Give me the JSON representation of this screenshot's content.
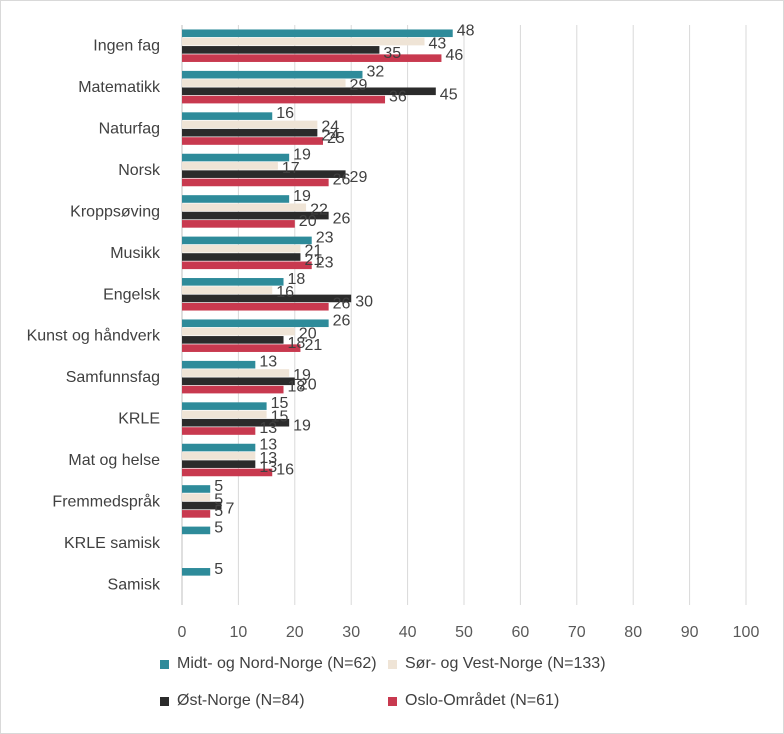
{
  "chart_data": {
    "type": "bar",
    "orientation": "horizontal",
    "categories": [
      "Ingen fag",
      "Matematikk",
      "Naturfag",
      "Norsk",
      "Kroppsøving",
      "Musikk",
      "Engelsk",
      "Kunst og håndverk",
      "Samfunnsfag",
      "KRLE",
      "Mat og helse",
      "Fremmedspråk",
      "KRLE samisk",
      "Samisk"
    ],
    "series": [
      {
        "name": "Midt- og Nord-Norge (N=62)",
        "color": "#2e8b9a",
        "values": [
          48,
          32,
          16,
          19,
          19,
          23,
          18,
          26,
          13,
          15,
          13,
          5,
          5,
          5
        ]
      },
      {
        "name": "Sør- og Vest-Norge (N=133)",
        "color": "#efe4d6",
        "values": [
          43,
          29,
          24,
          17,
          22,
          21,
          16,
          20,
          19,
          15,
          13,
          5,
          null,
          null
        ]
      },
      {
        "name": "Øst-Norge (N=84)",
        "color": "#2b2b2b",
        "values": [
          35,
          45,
          24,
          29,
          26,
          21,
          30,
          18,
          20,
          19,
          13,
          7,
          null,
          null
        ]
      },
      {
        "name": "Oslo-Området (N=61)",
        "color": "#c8394f",
        "values": [
          46,
          36,
          25,
          26,
          20,
          23,
          26,
          21,
          18,
          13,
          16,
          5,
          null,
          null
        ]
      }
    ],
    "xlim": [
      0,
      100
    ],
    "xticks": [
      "0",
      "10",
      "20",
      "30",
      "40",
      "50",
      "60",
      "70",
      "80",
      "90",
      "100"
    ],
    "grid": "vertical",
    "legend_position": "bottom",
    "title": "",
    "xlabel": "",
    "ylabel": ""
  }
}
